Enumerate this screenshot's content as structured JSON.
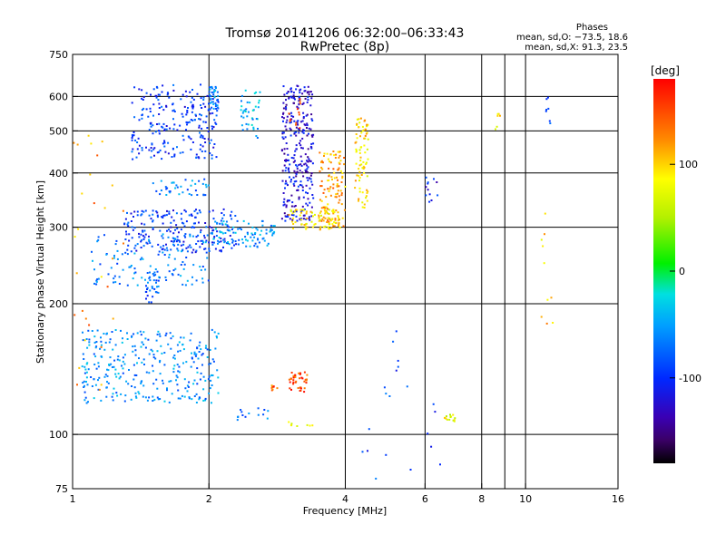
{
  "chart_data": {
    "type": "scatter",
    "title": "Tromsø 20141206 06:32:00–06:33:43",
    "subtitle": "RwPretec (8p)",
    "stats": {
      "heading": "Phases",
      "line_o": "mean, sd,O: −73.5, 18.6",
      "line_x": "mean, sd,X:  91.3, 23.5"
    },
    "xlabel": "Frequency [MHz]",
    "ylabel": "Stationary phase Virtual Height [km]",
    "x_scale": "log",
    "y_scale": "log",
    "xlim": [
      1,
      16
    ],
    "ylim": [
      75,
      750
    ],
    "x_ticks": [
      1,
      2,
      4,
      6,
      8,
      10,
      16
    ],
    "x_tick_labels": [
      "1",
      "2",
      "4",
      "6",
      "8",
      "10",
      "16"
    ],
    "x_grid": [
      2,
      4,
      6,
      8,
      10
    ],
    "x_minor_grid": [
      9
    ],
    "y_ticks": [
      75,
      100,
      200,
      300,
      400,
      500,
      600,
      750
    ],
    "y_tick_labels": [
      "75",
      "100",
      "200",
      "300",
      "400",
      "500",
      "600",
      "750"
    ],
    "y_grid": [
      100,
      200,
      300,
      400,
      500,
      600
    ],
    "grid": true,
    "colorbar": {
      "label": "[deg]",
      "range": [
        -180,
        180
      ],
      "ticks": [
        100,
        0,
        -100
      ],
      "tick_labels": [
        "100",
        "0",
        "-100"
      ]
    },
    "point_groups": [
      {
        "f_range": [
          1.35,
          2.1
        ],
        "h_range": [
          430,
          640
        ],
        "phase": -95,
        "n": 240
      },
      {
        "f_range": [
          2.0,
          2.1
        ],
        "h_range": [
          560,
          640
        ],
        "phase": -55,
        "n": 30
      },
      {
        "f_range": [
          2.35,
          2.6
        ],
        "h_range": [
          480,
          620
        ],
        "phase": -45,
        "n": 40
      },
      {
        "f_range": [
          2.9,
          3.4
        ],
        "h_range": [
          310,
          640
        ],
        "phase": -120,
        "n": 300
      },
      {
        "f_range": [
          3.0,
          3.2
        ],
        "h_range": [
          500,
          600
        ],
        "phase": 150,
        "n": 12
      },
      {
        "f_range": [
          3.5,
          4.0
        ],
        "h_range": [
          300,
          450
        ],
        "phase": 115,
        "n": 120
      },
      {
        "f_range": [
          3.0,
          3.9
        ],
        "h_range": [
          296,
          330
        ],
        "phase": 90,
        "n": 80
      },
      {
        "f_range": [
          4.2,
          4.5
        ],
        "h_range": [
          330,
          540
        ],
        "phase": 95,
        "n": 80
      },
      {
        "f_range": [
          1.3,
          2.3
        ],
        "h_range": [
          262,
          330
        ],
        "phase": -95,
        "n": 220
      },
      {
        "f_range": [
          2.0,
          2.8
        ],
        "h_range": [
          270,
          310
        ],
        "phase": -55,
        "n": 90
      },
      {
        "f_range": [
          1.1,
          2.0
        ],
        "h_range": [
          220,
          290
        ],
        "phase": -65,
        "n": 120
      },
      {
        "f_range": [
          1.5,
          2.0
        ],
        "h_range": [
          355,
          390
        ],
        "phase": -65,
        "n": 40
      },
      {
        "f_range": [
          1.05,
          2.1
        ],
        "h_range": [
          118,
          175
        ],
        "phase": -60,
        "n": 320
      },
      {
        "f_range": [
          1.45,
          1.55
        ],
        "h_range": [
          200,
          240
        ],
        "phase": -80,
        "n": 30
      },
      {
        "f_range": [
          3.0,
          3.3
        ],
        "h_range": [
          125,
          140
        ],
        "phase": 150,
        "n": 40
      },
      {
        "f_range": [
          2.75,
          2.85
        ],
        "h_range": [
          126,
          131
        ],
        "phase": 140,
        "n": 8
      },
      {
        "f_range": [
          2.3,
          2.7
        ],
        "h_range": [
          108,
          115
        ],
        "phase": -70,
        "n": 14
      },
      {
        "f_range": [
          6.5,
          7.0
        ],
        "h_range": [
          107,
          111
        ],
        "phase": 75,
        "n": 14
      },
      {
        "f_range": [
          3.0,
          3.4
        ],
        "h_range": [
          104,
          107
        ],
        "phase": 75,
        "n": 8
      },
      {
        "f_range": [
          6.0,
          6.4
        ],
        "h_range": [
          325,
          395
        ],
        "phase": -110,
        "n": 12
      },
      {
        "f_range": [
          8.5,
          8.8
        ],
        "h_range": [
          500,
          600
        ],
        "phase": 90,
        "n": 6
      },
      {
        "f_range": [
          11.1,
          11.5
        ],
        "h_range": [
          520,
          600
        ],
        "phase": -90,
        "n": 7
      },
      {
        "f_range": [
          10.8,
          11.5
        ],
        "h_range": [
          175,
          330
        ],
        "phase": 100,
        "n": 10
      },
      {
        "f_range": [
          1.0,
          1.3
        ],
        "h_range": [
          110,
          500
        ],
        "phase": 120,
        "n": 30
      },
      {
        "f_range": [
          3.8,
          6.5
        ],
        "h_range": [
          78,
          180
        ],
        "phase": -85,
        "n": 20
      }
    ]
  }
}
